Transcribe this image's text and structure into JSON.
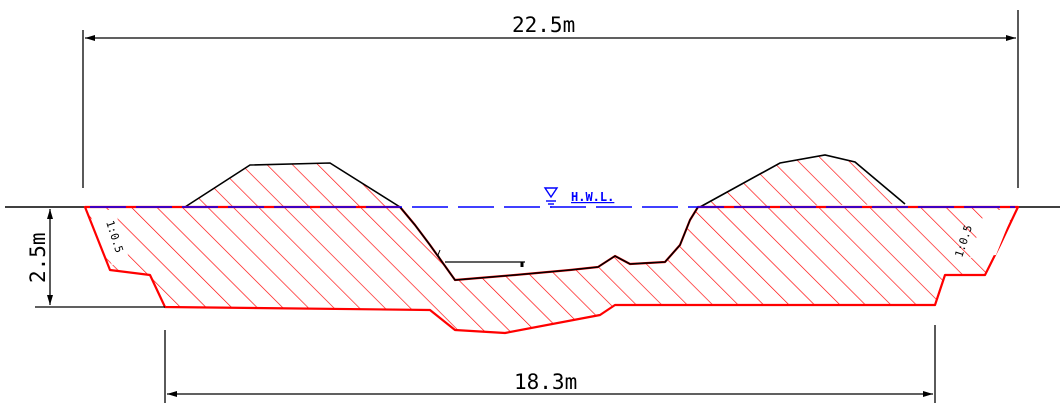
{
  "dimensions": {
    "top_width": "22.5m",
    "bottom_width": "18.3m",
    "depth": "2.5m"
  },
  "slopes": {
    "left": "1:0.5",
    "right": "1:0.5"
  },
  "water_level": {
    "label": "H.W.L."
  },
  "colors": {
    "hatch": "#ff0000",
    "water_line": "#0000ff",
    "lines": "#000000"
  }
}
